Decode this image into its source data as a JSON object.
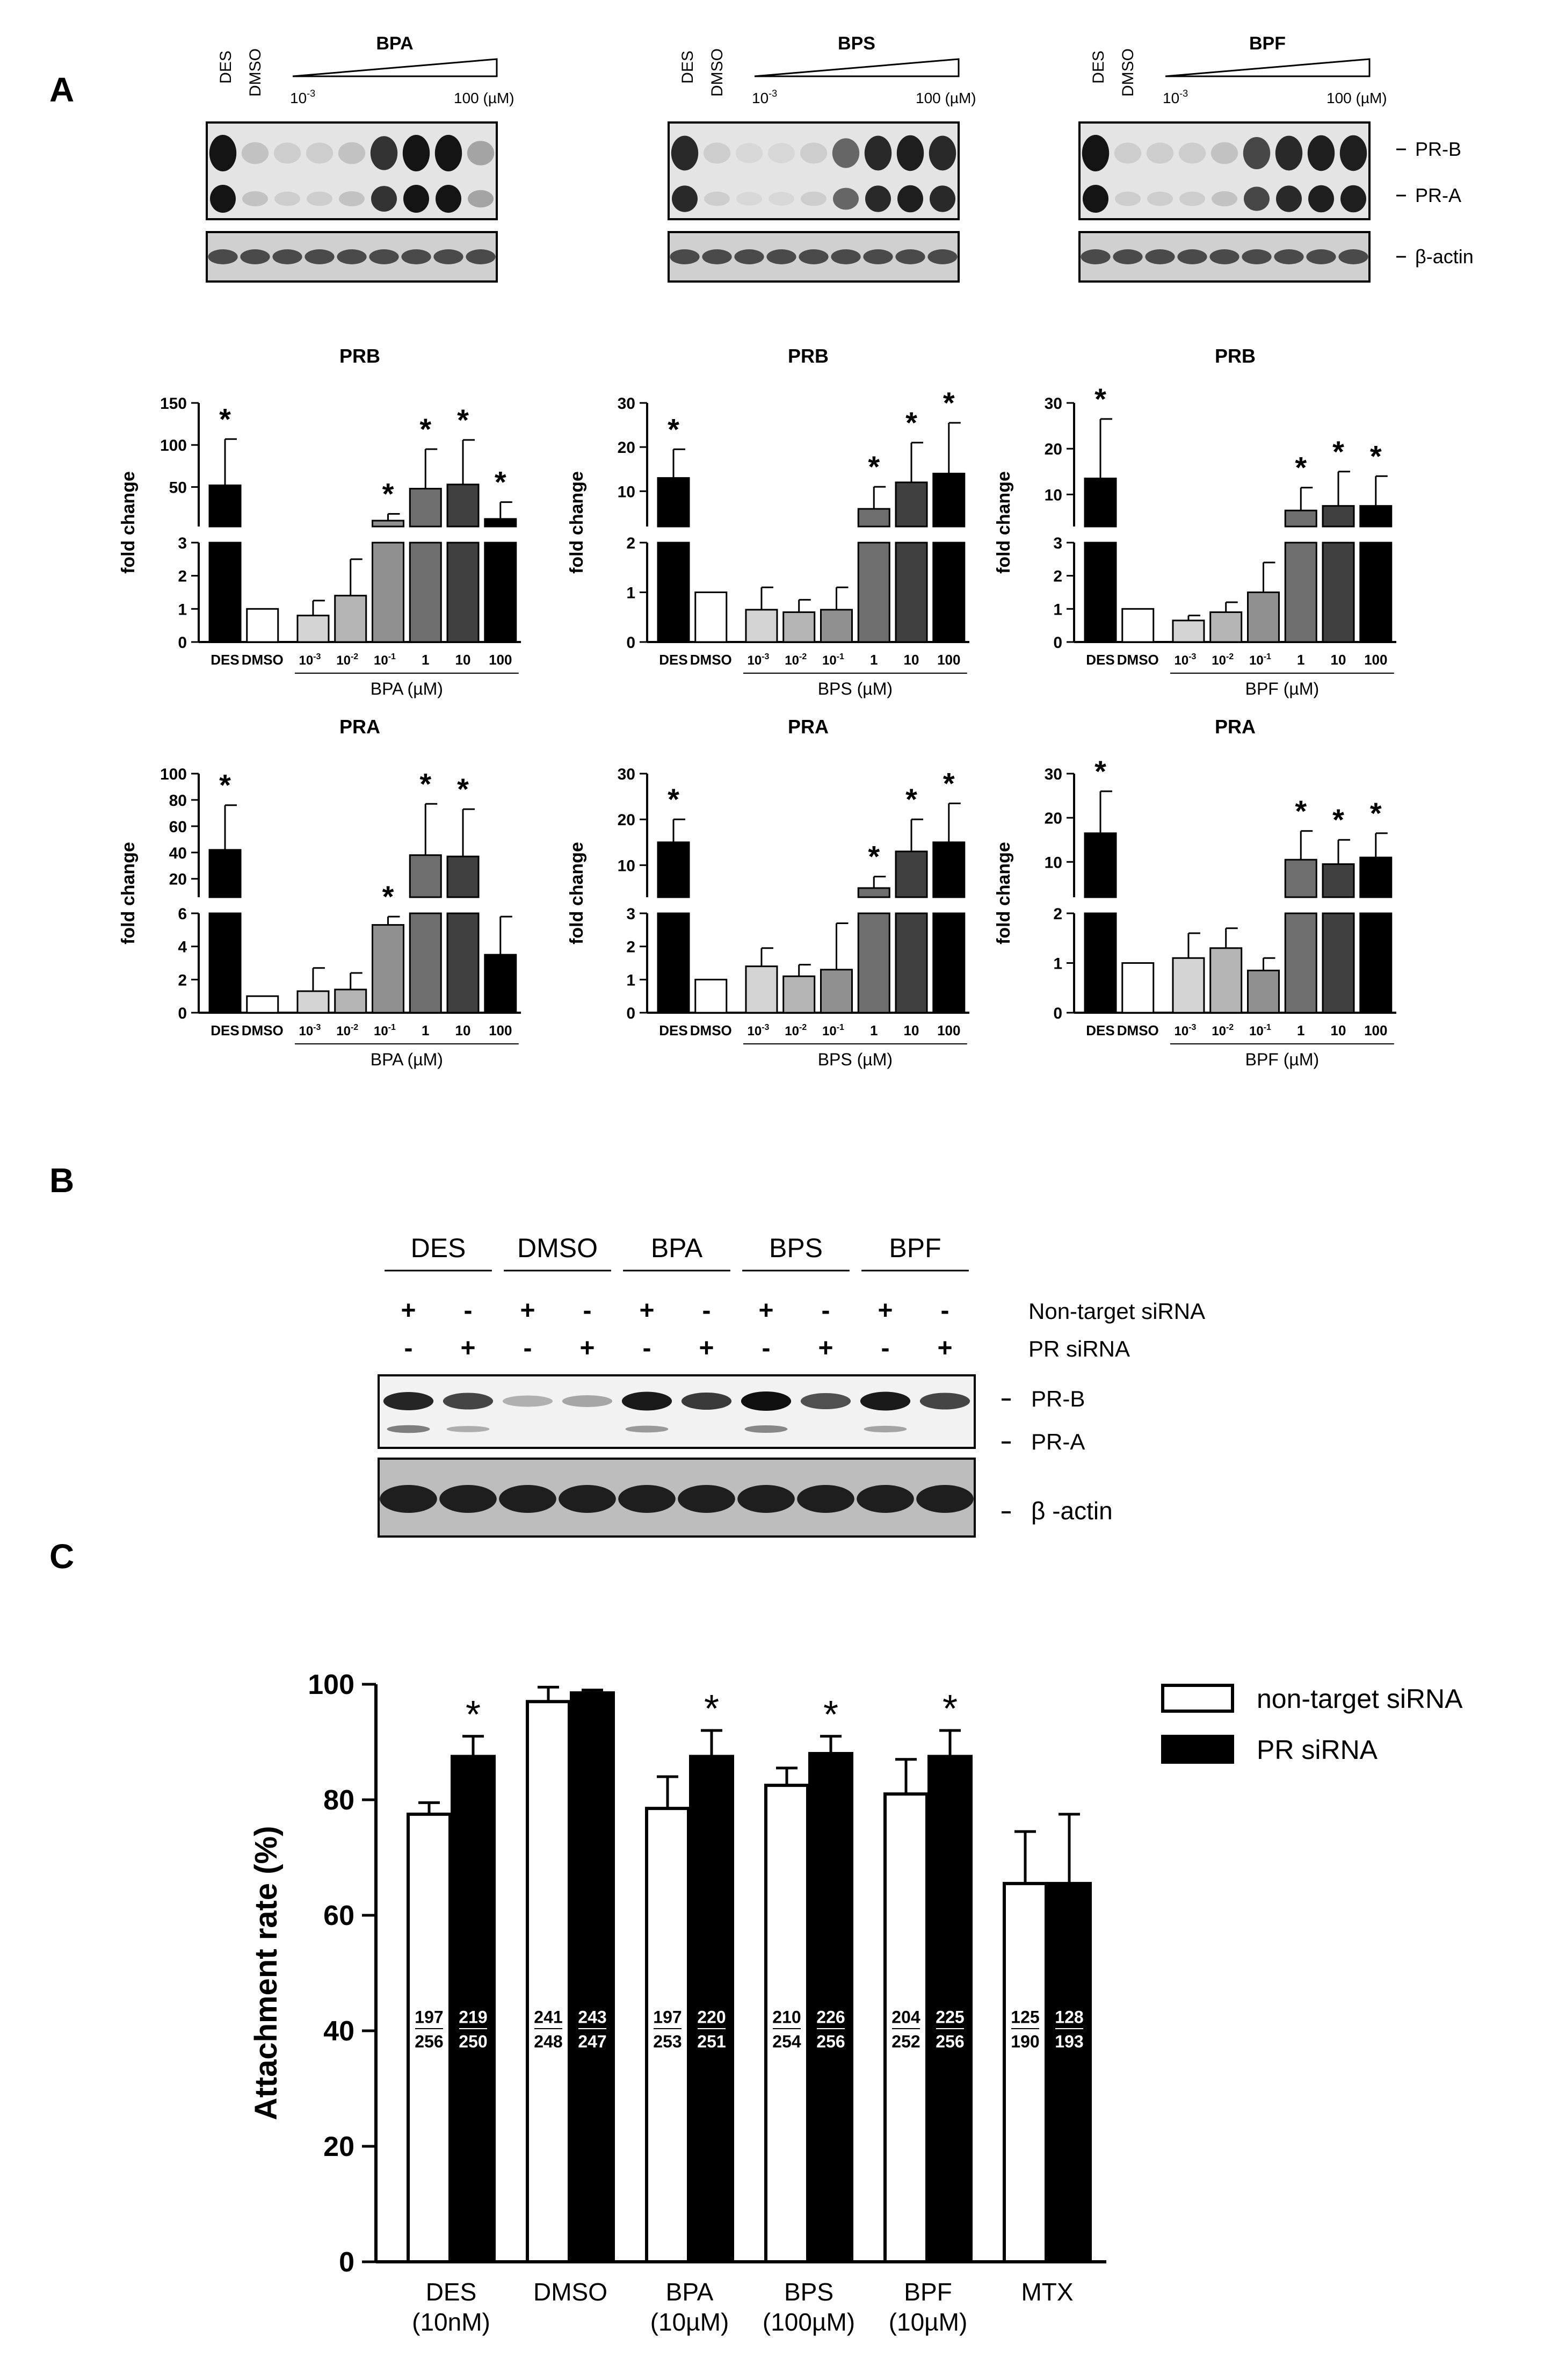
{
  "panels": {
    "a": "A",
    "b": "B",
    "c": "C"
  },
  "blots_a": [
    {
      "compound": "BPA",
      "lane_des": "DES",
      "lane_dmso": "DMSO",
      "conc_low": "10",
      "conc_low_exp": "-3",
      "conc_high": "100 (µM)"
    },
    {
      "compound": "BPS",
      "lane_des": "DES",
      "lane_dmso": "DMSO",
      "conc_low": "10",
      "conc_low_exp": "-3",
      "conc_high": "100 (µM)"
    },
    {
      "compound": "BPF",
      "lane_des": "DES",
      "lane_dmso": "DMSO",
      "conc_low": "10",
      "conc_low_exp": "-3",
      "conc_high": "100 (µM)"
    }
  ],
  "blot_a_bands": {
    "prb": "PR-B",
    "pra": "PR-A",
    "actin": "β-actin"
  },
  "blot_b": {
    "groups": [
      "DES",
      "DMSO",
      "BPA",
      "BPS",
      "BPF"
    ],
    "row1_label": "Non-target siRNA",
    "row2_label": "PR  siRNA",
    "row1_signs": [
      "+",
      "-",
      "+",
      "-",
      "+",
      "-",
      "+",
      "-",
      "+",
      "-"
    ],
    "row2_signs": [
      "-",
      "+",
      "-",
      "+",
      "-",
      "+",
      "-",
      "+",
      "-",
      "+"
    ],
    "band_prb": "PR-B",
    "band_pra": "PR-A",
    "band_actin": "β -actin"
  },
  "chart_data": [
    {
      "type": "bar",
      "title": "PRB",
      "ylabel": "fold change",
      "xlabel": "BPA (µM)",
      "categories": [
        "DES",
        "DMSO",
        "10-3",
        "10-2",
        "10-1",
        "1",
        "10",
        "100"
      ],
      "values": [
        52,
        1,
        0.8,
        1.4,
        10,
        48,
        53,
        12
      ],
      "errors": [
        55,
        0,
        0.45,
        1.1,
        8,
        47,
        53,
        20
      ],
      "significant": [
        true,
        false,
        false,
        false,
        true,
        true,
        true,
        true
      ],
      "broken_axis": {
        "lower_range": [
          0,
          3
        ],
        "lower_ticks": [
          0,
          1,
          2,
          3
        ],
        "upper_range": [
          3,
          150
        ],
        "upper_ticks": [
          50,
          100,
          150
        ]
      }
    },
    {
      "type": "bar",
      "title": "PRB",
      "ylabel": "fold change",
      "xlabel": "BPS (µM)",
      "categories": [
        "DES",
        "DMSO",
        "10-3",
        "10-2",
        "10-1",
        "1",
        "10",
        "100"
      ],
      "values": [
        13,
        1,
        0.65,
        0.6,
        0.65,
        6,
        12,
        14
      ],
      "errors": [
        6.5,
        0,
        0.45,
        0.25,
        0.45,
        5,
        9,
        11.5
      ],
      "significant": [
        true,
        false,
        false,
        false,
        false,
        true,
        true,
        true
      ],
      "broken_axis": {
        "lower_range": [
          0,
          2
        ],
        "lower_ticks": [
          0,
          1,
          2
        ],
        "upper_range": [
          2,
          30
        ],
        "upper_ticks": [
          10,
          20,
          30
        ]
      }
    },
    {
      "type": "bar",
      "title": "PRB",
      "ylabel": "fold change",
      "xlabel": "BPF (µM)",
      "categories": [
        "DES",
        "DMSO",
        "10-3",
        "10-2",
        "10-1",
        "1",
        "10",
        "100"
      ],
      "values": [
        13.5,
        1,
        0.65,
        0.9,
        1.5,
        6.5,
        7.5,
        7.5
      ],
      "errors": [
        13,
        0,
        0.15,
        0.3,
        0.9,
        5,
        7.5,
        6.5
      ],
      "significant": [
        true,
        false,
        false,
        false,
        false,
        true,
        true,
        true
      ],
      "broken_axis": {
        "lower_range": [
          0,
          3
        ],
        "lower_ticks": [
          0,
          1,
          2,
          3
        ],
        "upper_range": [
          3,
          30
        ],
        "upper_ticks": [
          10,
          20,
          30
        ]
      }
    },
    {
      "type": "bar",
      "title": "PRA",
      "ylabel": "fold change",
      "xlabel": "BPA (µM)",
      "categories": [
        "DES",
        "DMSO",
        "10-3",
        "10-2",
        "10-1",
        "1",
        "10",
        "100"
      ],
      "values": [
        42,
        1,
        1.3,
        1.4,
        5.3,
        38,
        37,
        3.5
      ],
      "errors": [
        34,
        0,
        1.4,
        1.0,
        0.5,
        39,
        36,
        2.3
      ],
      "significant": [
        true,
        false,
        false,
        false,
        true,
        true,
        true,
        false
      ],
      "broken_axis": {
        "lower_range": [
          0,
          6
        ],
        "lower_ticks": [
          0,
          2,
          4,
          6
        ],
        "upper_range": [
          6,
          100
        ],
        "upper_ticks": [
          20,
          40,
          60,
          80,
          100
        ]
      }
    },
    {
      "type": "bar",
      "title": "PRA",
      "ylabel": "fold change",
      "xlabel": "BPS (µM)",
      "categories": [
        "DES",
        "DMSO",
        "10-3",
        "10-2",
        "10-1",
        "1",
        "10",
        "100"
      ],
      "values": [
        15,
        1,
        1.4,
        1.1,
        1.3,
        5,
        13,
        15
      ],
      "errors": [
        5,
        0,
        0.55,
        0.35,
        1.4,
        2.5,
        7,
        8.5
      ],
      "significant": [
        true,
        false,
        false,
        false,
        false,
        true,
        true,
        true
      ],
      "broken_axis": {
        "lower_range": [
          0,
          3
        ],
        "lower_ticks": [
          0,
          1,
          2,
          3
        ],
        "upper_range": [
          3,
          30
        ],
        "upper_ticks": [
          10,
          20,
          30
        ]
      }
    },
    {
      "type": "bar",
      "title": "PRA",
      "ylabel": "fold change",
      "xlabel": "BPF (µM)",
      "categories": [
        "DES",
        "DMSO",
        "10-3",
        "10-2",
        "10-1",
        "1",
        "10",
        "100"
      ],
      "values": [
        16.5,
        1,
        1.1,
        1.3,
        0.85,
        10.5,
        9.5,
        11
      ],
      "errors": [
        9.5,
        0,
        0.5,
        0.4,
        0.25,
        6.5,
        5.5,
        5.5
      ],
      "significant": [
        true,
        false,
        false,
        false,
        false,
        true,
        true,
        true
      ],
      "broken_axis": {
        "lower_range": [
          0,
          2
        ],
        "lower_ticks": [
          0,
          1,
          2
        ],
        "upper_range": [
          2,
          30
        ],
        "upper_ticks": [
          10,
          20,
          30
        ]
      }
    },
    {
      "type": "bar",
      "ylabel": "Attachment rate (%)",
      "ylim": [
        0,
        100
      ],
      "yticks": [
        0,
        20,
        40,
        60,
        80,
        100
      ],
      "categories": [
        [
          "DES",
          "(10nM)"
        ],
        [
          "DMSO"
        ],
        [
          "BPA",
          "(10µM)"
        ],
        [
          "BPS",
          "(100µM)"
        ],
        [
          "BPF",
          "(10µM)"
        ],
        [
          "MTX"
        ]
      ],
      "series": [
        {
          "name": "non-target siRNA",
          "color": "#ffffff",
          "values": [
            77.5,
            97,
            78.5,
            82.5,
            81,
            65.5
          ],
          "errors": [
            2,
            2.5,
            5.5,
            3,
            6,
            9
          ],
          "counts": [
            [
              "197",
              "256"
            ],
            [
              "241",
              "248"
            ],
            [
              "197",
              "253"
            ],
            [
              "210",
              "254"
            ],
            [
              "204",
              "252"
            ],
            [
              "125",
              "190"
            ]
          ]
        },
        {
          "name": "PR siRNA",
          "color": "#000000",
          "values": [
            87.5,
            98.5,
            87.5,
            88,
            87.5,
            65.5
          ],
          "errors": [
            3.5,
            0.5,
            4.5,
            3,
            4.5,
            12
          ],
          "counts": [
            [
              "219",
              "250"
            ],
            [
              "243",
              "247"
            ],
            [
              "220",
              "251"
            ],
            [
              "226",
              "256"
            ],
            [
              "225",
              "256"
            ],
            [
              "128",
              "193"
            ]
          ]
        }
      ],
      "significant": [
        true,
        false,
        true,
        true,
        true,
        false
      ]
    }
  ]
}
